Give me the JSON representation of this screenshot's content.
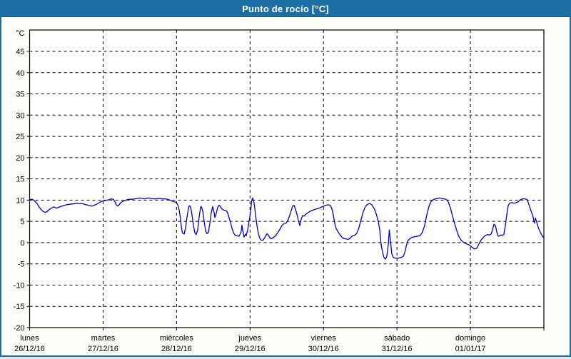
{
  "window": {
    "title": "Punto de rocío [°C]"
  },
  "colors": {
    "titlebar_bg": "#1c6ea4",
    "window_border": "#1c6ea4",
    "page_bg": "#fcfefa",
    "plot_bg": "#ffffff",
    "grid": "#000000",
    "axis": "#000000",
    "line": "#0000bb",
    "title_text": "#ffffff",
    "axis_text": "#000000"
  },
  "chart_data": {
    "type": "line",
    "title": "Punto de rocío [°C]",
    "unit_label": "°C",
    "ylabel": "°C",
    "ylim": [
      -20,
      50
    ],
    "yticks": [
      45,
      40,
      35,
      30,
      25,
      20,
      15,
      10,
      5,
      0,
      -5,
      -10,
      -15,
      -20
    ],
    "grid": "dashed-black",
    "legend": "none",
    "x_axis": {
      "span_days": 7,
      "categories": [
        {
          "name": "lunes",
          "date": "26/12/16"
        },
        {
          "name": "martes",
          "date": "27/12/16"
        },
        {
          "name": "miércoles",
          "date": "28/12/16"
        },
        {
          "name": "jueves",
          "date": "29/12/16"
        },
        {
          "name": "viernes",
          "date": "30/12/16"
        },
        {
          "name": "sábado",
          "date": "31/12/16"
        },
        {
          "name": "domingo",
          "date": "01/01/17"
        }
      ]
    },
    "series": [
      {
        "name": "Punto de rocío",
        "color": "#0000bb",
        "points": [
          [
            0.0,
            10.1
          ],
          [
            0.034,
            10.2
          ],
          [
            0.063,
            9.9
          ],
          [
            0.092,
            9.4
          ],
          [
            0.121,
            8.6
          ],
          [
            0.151,
            7.9
          ],
          [
            0.18,
            7.4
          ],
          [
            0.209,
            7.1
          ],
          [
            0.238,
            7.3
          ],
          [
            0.267,
            7.8
          ],
          [
            0.296,
            8.1
          ],
          [
            0.325,
            8.4
          ],
          [
            0.345,
            8.3
          ],
          [
            0.364,
            8.1
          ],
          [
            0.393,
            8.3
          ],
          [
            0.423,
            8.5
          ],
          [
            0.461,
            8.7
          ],
          [
            0.5,
            8.9
          ],
          [
            0.539,
            9.0
          ],
          [
            0.588,
            9.1
          ],
          [
            0.636,
            9.2
          ],
          [
            0.685,
            9.2
          ],
          [
            0.733,
            9.1
          ],
          [
            0.772,
            8.9
          ],
          [
            0.811,
            8.7
          ],
          [
            0.85,
            8.6
          ],
          [
            0.879,
            8.8
          ],
          [
            0.908,
            9.0
          ],
          [
            0.938,
            9.3
          ],
          [
            0.967,
            9.6
          ],
          [
            0.996,
            9.8
          ],
          [
            1.025,
            9.9
          ],
          [
            1.054,
            10.0
          ],
          [
            1.083,
            10.1
          ],
          [
            1.112,
            10.3
          ],
          [
            1.142,
            10.2
          ],
          [
            1.161,
            9.6
          ],
          [
            1.18,
            8.9
          ],
          [
            1.2,
            8.6
          ],
          [
            1.219,
            8.9
          ],
          [
            1.239,
            9.4
          ],
          [
            1.268,
            9.7
          ],
          [
            1.297,
            9.9
          ],
          [
            1.326,
            10.1
          ],
          [
            1.355,
            10.2
          ],
          [
            1.394,
            10.2
          ],
          [
            1.433,
            10.3
          ],
          [
            1.472,
            10.4
          ],
          [
            1.501,
            10.5
          ],
          [
            1.53,
            10.4
          ],
          [
            1.559,
            10.3
          ],
          [
            1.588,
            10.4
          ],
          [
            1.617,
            10.5
          ],
          [
            1.647,
            10.4
          ],
          [
            1.686,
            10.3
          ],
          [
            1.724,
            10.3
          ],
          [
            1.763,
            10.4
          ],
          [
            1.802,
            10.3
          ],
          [
            1.841,
            10.3
          ],
          [
            1.88,
            10.2
          ],
          [
            1.909,
            10.0
          ],
          [
            1.938,
            9.8
          ],
          [
            1.967,
            9.6
          ],
          [
            1.996,
            9.5
          ],
          [
            2.016,
            8.9
          ],
          [
            2.035,
            7.7
          ],
          [
            2.055,
            5.5
          ],
          [
            2.064,
            4.0
          ],
          [
            2.074,
            2.8
          ],
          [
            2.084,
            2.2
          ],
          [
            2.103,
            2.0
          ],
          [
            2.123,
            3.5
          ],
          [
            2.142,
            6.0
          ],
          [
            2.162,
            8.0
          ],
          [
            2.171,
            8.7
          ],
          [
            2.191,
            8.4
          ],
          [
            2.21,
            6.5
          ],
          [
            2.23,
            4.0
          ],
          [
            2.249,
            2.3
          ],
          [
            2.268,
            1.9
          ],
          [
            2.288,
            3.0
          ],
          [
            2.307,
            6.0
          ],
          [
            2.327,
            8.3
          ],
          [
            2.336,
            8.5
          ],
          [
            2.356,
            7.5
          ],
          [
            2.375,
            5.0
          ],
          [
            2.395,
            2.8
          ],
          [
            2.414,
            2.1
          ],
          [
            2.433,
            2.4
          ],
          [
            2.453,
            4.5
          ],
          [
            2.472,
            7.0
          ],
          [
            2.492,
            8.5
          ],
          [
            2.511,
            7.0
          ],
          [
            2.521,
            5.9
          ],
          [
            2.54,
            6.8
          ],
          [
            2.56,
            8.3
          ],
          [
            2.579,
            8.8
          ],
          [
            2.599,
            8.4
          ],
          [
            2.618,
            7.9
          ],
          [
            2.637,
            7.7
          ],
          [
            2.657,
            7.6
          ],
          [
            2.676,
            7.5
          ],
          [
            2.696,
            7.0
          ],
          [
            2.715,
            5.8
          ],
          [
            2.735,
            4.7
          ],
          [
            2.754,
            3.4
          ],
          [
            2.773,
            2.4
          ],
          [
            2.793,
            1.8
          ],
          [
            2.822,
            1.6
          ],
          [
            2.851,
            1.5
          ],
          [
            2.88,
            2.5
          ],
          [
            2.89,
            4.1
          ],
          [
            2.9,
            3.0
          ],
          [
            2.919,
            1.3
          ],
          [
            2.938,
            2.0
          ],
          [
            2.948,
            1.6
          ],
          [
            2.968,
            3.0
          ],
          [
            2.987,
            5.0
          ],
          [
            3.007,
            7.0
          ],
          [
            3.016,
            8.8
          ],
          [
            3.026,
            10.2
          ],
          [
            3.036,
            10.5
          ],
          [
            3.055,
            9.5
          ],
          [
            3.075,
            6.5
          ],
          [
            3.094,
            4.0
          ],
          [
            3.113,
            2.2
          ],
          [
            3.133,
            1.0
          ],
          [
            3.152,
            0.6
          ],
          [
            3.172,
            0.5
          ],
          [
            3.191,
            0.9
          ],
          [
            3.211,
            1.5
          ],
          [
            3.23,
            2.1
          ],
          [
            3.249,
            1.8
          ],
          [
            3.269,
            1.2
          ],
          [
            3.288,
            0.9
          ],
          [
            3.317,
            1.2
          ],
          [
            3.347,
            1.6
          ],
          [
            3.376,
            2.3
          ],
          [
            3.405,
            3.1
          ],
          [
            3.434,
            4.0
          ],
          [
            3.463,
            4.5
          ],
          [
            3.492,
            4.6
          ],
          [
            3.522,
            5.5
          ],
          [
            3.551,
            7.0
          ],
          [
            3.58,
            8.6
          ],
          [
            3.6,
            8.8
          ],
          [
            3.619,
            7.8
          ],
          [
            3.638,
            6.7
          ],
          [
            3.658,
            5.2
          ],
          [
            3.677,
            4.0
          ],
          [
            3.697,
            5.5
          ],
          [
            3.716,
            6.4
          ],
          [
            3.735,
            6.2
          ],
          [
            3.755,
            6.6
          ],
          [
            3.784,
            7.0
          ],
          [
            3.823,
            7.4
          ],
          [
            3.862,
            7.7
          ],
          [
            3.9,
            7.9
          ],
          [
            3.939,
            8.1
          ],
          [
            3.978,
            8.4
          ],
          [
            4.007,
            8.6
          ],
          [
            4.037,
            8.8
          ],
          [
            4.066,
            8.9
          ],
          [
            4.095,
            8.7
          ],
          [
            4.114,
            8.0
          ],
          [
            4.134,
            6.5
          ],
          [
            4.153,
            4.5
          ],
          [
            4.172,
            3.3
          ],
          [
            4.192,
            2.7
          ],
          [
            4.211,
            2.2
          ],
          [
            4.24,
            1.5
          ],
          [
            4.27,
            1.0
          ],
          [
            4.299,
            0.9
          ],
          [
            4.328,
            0.8
          ],
          [
            4.357,
            0.9
          ],
          [
            4.376,
            1.3
          ],
          [
            4.396,
            1.6
          ],
          [
            4.425,
            1.7
          ],
          [
            4.454,
            2.2
          ],
          [
            4.483,
            3.5
          ],
          [
            4.513,
            5.5
          ],
          [
            4.542,
            7.3
          ],
          [
            4.571,
            8.5
          ],
          [
            4.6,
            9.0
          ],
          [
            4.629,
            9.2
          ],
          [
            4.658,
            8.9
          ],
          [
            4.688,
            8.1
          ],
          [
            4.717,
            6.8
          ],
          [
            4.746,
            5.0
          ],
          [
            4.765,
            3.0
          ],
          [
            4.785,
            -0.5
          ],
          [
            4.804,
            -2.3
          ],
          [
            4.824,
            -3.5
          ],
          [
            4.843,
            -3.9
          ],
          [
            4.862,
            -3.2
          ],
          [
            4.882,
            -0.5
          ],
          [
            4.896,
            3.0
          ],
          [
            4.911,
            0.5
          ],
          [
            4.93,
            -2.6
          ],
          [
            4.95,
            -3.5
          ],
          [
            4.969,
            -3.6
          ],
          [
            4.998,
            -3.7
          ],
          [
            5.027,
            -3.6
          ],
          [
            5.057,
            -3.5
          ],
          [
            5.086,
            -3.2
          ],
          [
            5.105,
            -2.4
          ],
          [
            5.124,
            -1.0
          ],
          [
            5.144,
            0.3
          ],
          [
            5.173,
            0.9
          ],
          [
            5.202,
            1.2
          ],
          [
            5.241,
            1.4
          ],
          [
            5.28,
            1.5
          ],
          [
            5.319,
            1.7
          ],
          [
            5.348,
            2.5
          ],
          [
            5.377,
            4.0
          ],
          [
            5.406,
            6.5
          ],
          [
            5.435,
            8.5
          ],
          [
            5.465,
            9.7
          ],
          [
            5.494,
            10.1
          ],
          [
            5.523,
            10.3
          ],
          [
            5.552,
            10.4
          ],
          [
            5.581,
            10.5
          ],
          [
            5.61,
            10.4
          ],
          [
            5.64,
            10.3
          ],
          [
            5.669,
            10.2
          ],
          [
            5.698,
            9.6
          ],
          [
            5.727,
            8.2
          ],
          [
            5.757,
            6.2
          ],
          [
            5.786,
            4.4
          ],
          [
            5.815,
            2.8
          ],
          [
            5.844,
            1.4
          ],
          [
            5.873,
            0.6
          ],
          [
            5.902,
            0.1
          ],
          [
            5.932,
            -0.2
          ],
          [
            5.961,
            -0.4
          ],
          [
            5.99,
            -0.6
          ],
          [
            6.029,
            -1.2
          ],
          [
            6.058,
            -1.5
          ],
          [
            6.087,
            -1.3
          ],
          [
            6.116,
            -0.3
          ],
          [
            6.145,
            0.6
          ],
          [
            6.174,
            1.2
          ],
          [
            6.204,
            1.7
          ],
          [
            6.233,
            1.9
          ],
          [
            6.262,
            1.8
          ],
          [
            6.281,
            2.0
          ],
          [
            6.301,
            3.0
          ],
          [
            6.32,
            4.3
          ],
          [
            6.34,
            4.0
          ],
          [
            6.359,
            2.5
          ],
          [
            6.378,
            1.5
          ],
          [
            6.398,
            1.6
          ],
          [
            6.417,
            1.8
          ],
          [
            6.437,
            1.7
          ],
          [
            6.456,
            2.0
          ],
          [
            6.475,
            4.0
          ],
          [
            6.495,
            6.5
          ],
          [
            6.514,
            8.7
          ],
          [
            6.534,
            9.3
          ],
          [
            6.563,
            9.4
          ],
          [
            6.592,
            9.3
          ],
          [
            6.621,
            9.4
          ],
          [
            6.65,
            9.6
          ],
          [
            6.679,
            10.1
          ],
          [
            6.709,
            10.3
          ],
          [
            6.738,
            10.3
          ],
          [
            6.767,
            10.2
          ],
          [
            6.786,
            9.5
          ],
          [
            6.806,
            8.4
          ],
          [
            6.835,
            7.0
          ],
          [
            6.854,
            6.0
          ],
          [
            6.864,
            5.0
          ],
          [
            6.874,
            4.6
          ],
          [
            6.884,
            5.8
          ],
          [
            6.903,
            4.8
          ],
          [
            6.922,
            3.6
          ],
          [
            6.942,
            2.8
          ],
          [
            6.961,
            2.1
          ],
          [
            6.981,
            1.5
          ],
          [
            7.0,
            1.1
          ]
        ]
      }
    ]
  }
}
